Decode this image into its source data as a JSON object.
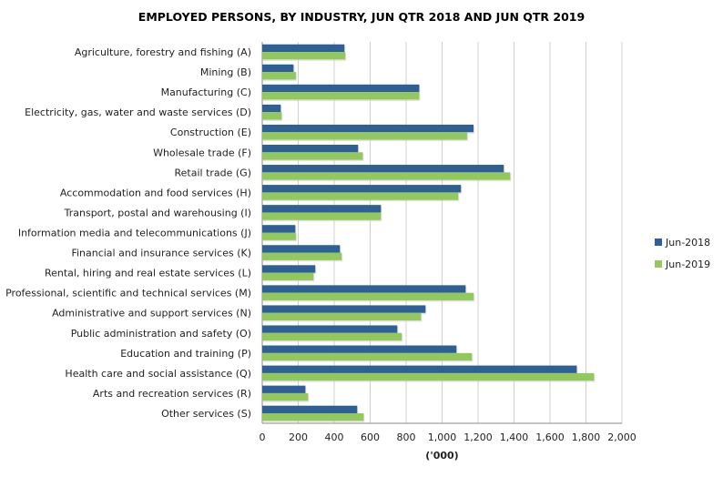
{
  "chart_data": {
    "type": "bar",
    "orientation": "horizontal",
    "title": "EMPLOYED PERSONS, BY INDUSTRY, JUN QTR 2018 AND JUN QTR 2019",
    "xlabel": "('000)",
    "ylabel": "",
    "xlim": [
      0,
      2000
    ],
    "xticks": [
      "0",
      "200",
      "400",
      "600",
      "800",
      "1,000",
      "1,200",
      "1,400",
      "1,600",
      "1,800",
      "2,000"
    ],
    "grid": true,
    "legend_position": "right",
    "categories": [
      "Agriculture, forestry and fishing (A)",
      "Mining (B)",
      "Manufacturing (C)",
      "Electricity, gas, water and waste services (D)",
      "Construction (E)",
      "Wholesale trade (F)",
      "Retail trade (G)",
      "Accommodation and food services (H)",
      "Transport, postal and warehousing (I)",
      "Information media and telecommunications (J)",
      "Financial and insurance services (K)",
      "Rental, hiring and real estate services (L)",
      "Professional, scientific and technical services (M)",
      "Administrative and support services (N)",
      "Public administration and safety (O)",
      "Education and training (P)",
      "Health care and social assistance (Q)",
      "Arts and recreation services (R)",
      "Other services (S)"
    ],
    "series": [
      {
        "name": "Jun-2018",
        "color": "#2E5F95",
        "values": [
          457,
          174,
          873,
          103,
          1175,
          533,
          1343,
          1105,
          660,
          184,
          432,
          295,
          1131,
          908,
          751,
          1080,
          1749,
          240,
          528
        ]
      },
      {
        "name": "Jun-2019",
        "color": "#92C85E",
        "values": [
          462,
          187,
          873,
          108,
          1139,
          559,
          1379,
          1090,
          660,
          187,
          442,
          285,
          1176,
          883,
          776,
          1166,
          1845,
          255,
          564
        ]
      }
    ]
  }
}
